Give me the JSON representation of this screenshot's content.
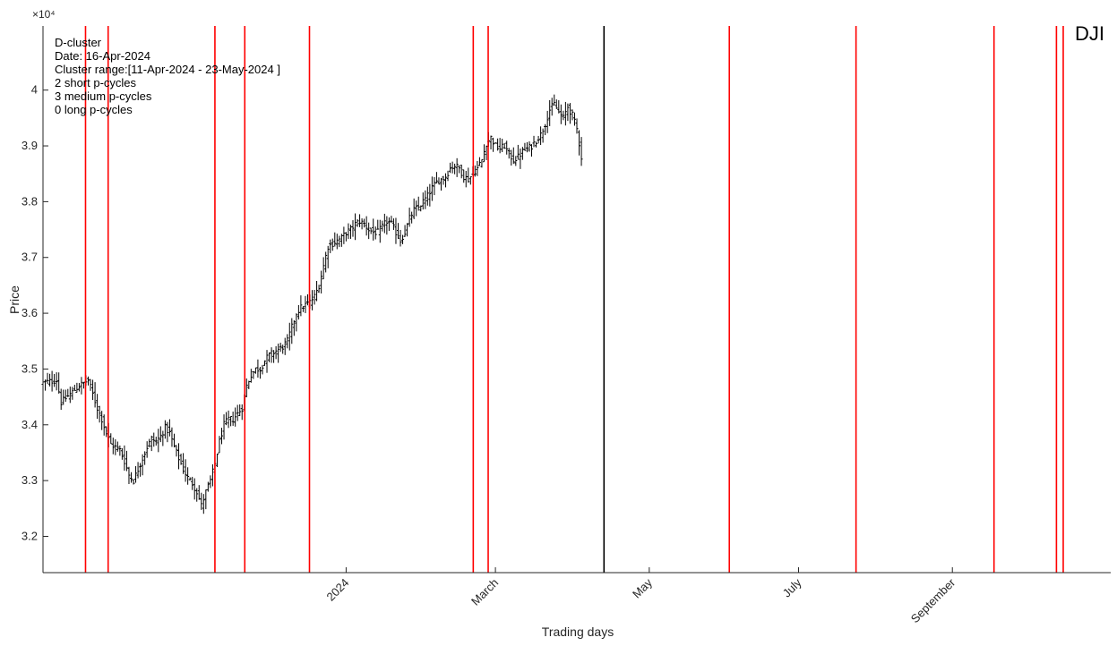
{
  "chart_data": {
    "type": "ohlc",
    "ticker": "DJI",
    "xlabel": "Trading days",
    "ylabel": "Price",
    "y_exponent": "×10⁴",
    "y_unit_scale": 10000,
    "ylim": [
      3.135,
      4.115
    ],
    "yticks": [
      3.2,
      3.3,
      3.4,
      3.5,
      3.6,
      3.7,
      3.8,
      3.9,
      4.0
    ],
    "ytick_labels": [
      "3.2",
      "3.3",
      "3.4",
      "3.5",
      "3.6",
      "3.7",
      "3.8",
      "3.9",
      "4"
    ],
    "xlim": [
      0,
      236
    ],
    "x_ticks": [
      {
        "label": "2024",
        "day": 67
      },
      {
        "label": "March",
        "day": 100
      },
      {
        "label": "May",
        "day": 134
      },
      {
        "label": "July",
        "day": 167
      },
      {
        "label": "September",
        "day": 201
      }
    ],
    "last_data_day": 119,
    "info": {
      "cluster_type": "D-cluster",
      "date_line": "Date: 16-Apr-2024",
      "range_line": "Cluster range:[11-Apr-2024 - 23-May-2024 ]",
      "short_line": "2 short p-cycles",
      "medium_line": "3 medium p-cycles",
      "long_line": "0 long p-cycles"
    },
    "current_day_line": {
      "day": 124,
      "color": "#000000"
    },
    "cycle_lines": {
      "color": "#ff0000",
      "days": [
        9.4,
        14.4,
        38,
        44.6,
        58.9,
        95.1,
        98.4,
        151.7,
        179.7,
        210.2,
        224,
        225.5
      ]
    },
    "price_path": [
      [
        0,
        3.475
      ],
      [
        3,
        3.48
      ],
      [
        4,
        3.44
      ],
      [
        6,
        3.455
      ],
      [
        8,
        3.47
      ],
      [
        10,
        3.48
      ],
      [
        11,
        3.455
      ],
      [
        12,
        3.43
      ],
      [
        13,
        3.41
      ],
      [
        14,
        3.385
      ],
      [
        15,
        3.365
      ],
      [
        17,
        3.355
      ],
      [
        18,
        3.335
      ],
      [
        19,
        3.31
      ],
      [
        20,
        3.3
      ],
      [
        21,
        3.32
      ],
      [
        22,
        3.34
      ],
      [
        23,
        3.36
      ],
      [
        24,
        3.375
      ],
      [
        25,
        3.37
      ],
      [
        26,
        3.38
      ],
      [
        27,
        3.395
      ],
      [
        28,
        3.385
      ],
      [
        29,
        3.36
      ],
      [
        30,
        3.34
      ],
      [
        31,
        3.32
      ],
      [
        32,
        3.305
      ],
      [
        33,
        3.295
      ],
      [
        34,
        3.28
      ],
      [
        35,
        3.255
      ],
      [
        36,
        3.28
      ],
      [
        37,
        3.3
      ],
      [
        38,
        3.33
      ],
      [
        39,
        3.37
      ],
      [
        40,
        3.4
      ],
      [
        41,
        3.41
      ],
      [
        42,
        3.41
      ],
      [
        43,
        3.42
      ],
      [
        44,
        3.43
      ],
      [
        45,
        3.47
      ],
      [
        46,
        3.49
      ],
      [
        47,
        3.5
      ],
      [
        48,
        3.5
      ],
      [
        49,
        3.515
      ],
      [
        50,
        3.525
      ],
      [
        51,
        3.53
      ],
      [
        52,
        3.535
      ],
      [
        53,
        3.54
      ],
      [
        54,
        3.55
      ],
      [
        55,
        3.575
      ],
      [
        56,
        3.6
      ],
      [
        57,
        3.61
      ],
      [
        58,
        3.615
      ],
      [
        59,
        3.62
      ],
      [
        60,
        3.63
      ],
      [
        61,
        3.65
      ],
      [
        62,
        3.685
      ],
      [
        63,
        3.72
      ],
      [
        64,
        3.725
      ],
      [
        65,
        3.73
      ],
      [
        66,
        3.735
      ],
      [
        67,
        3.745
      ],
      [
        68,
        3.75
      ],
      [
        69,
        3.76
      ],
      [
        70,
        3.765
      ],
      [
        71,
        3.76
      ],
      [
        72,
        3.75
      ],
      [
        73,
        3.745
      ],
      [
        74,
        3.745
      ],
      [
        75,
        3.755
      ],
      [
        76,
        3.765
      ],
      [
        77,
        3.76
      ],
      [
        78,
        3.745
      ],
      [
        79,
        3.73
      ],
      [
        80,
        3.745
      ],
      [
        81,
        3.77
      ],
      [
        82,
        3.785
      ],
      [
        83,
        3.79
      ],
      [
        84,
        3.8
      ],
      [
        85,
        3.81
      ],
      [
        86,
        3.825
      ],
      [
        87,
        3.835
      ],
      [
        88,
        3.84
      ],
      [
        89,
        3.845
      ],
      [
        90,
        3.86
      ],
      [
        91,
        3.865
      ],
      [
        92,
        3.86
      ],
      [
        93,
        3.845
      ],
      [
        94,
        3.84
      ],
      [
        95,
        3.85
      ],
      [
        96,
        3.86
      ],
      [
        97,
        3.875
      ],
      [
        98,
        3.905
      ],
      [
        99,
        3.915
      ],
      [
        100,
        3.9
      ],
      [
        101,
        3.895
      ],
      [
        102,
        3.9
      ],
      [
        103,
        3.885
      ],
      [
        104,
        3.875
      ],
      [
        105,
        3.88
      ],
      [
        106,
        3.89
      ],
      [
        107,
        3.895
      ],
      [
        108,
        3.9
      ],
      [
        109,
        3.91
      ],
      [
        110,
        3.92
      ],
      [
        111,
        3.94
      ],
      [
        112,
        3.965
      ],
      [
        113,
        3.975
      ],
      [
        114,
        3.96
      ],
      [
        115,
        3.95
      ],
      [
        116,
        3.97
      ],
      [
        117,
        3.955
      ],
      [
        118,
        3.93
      ],
      [
        119,
        3.88
      ]
    ]
  }
}
